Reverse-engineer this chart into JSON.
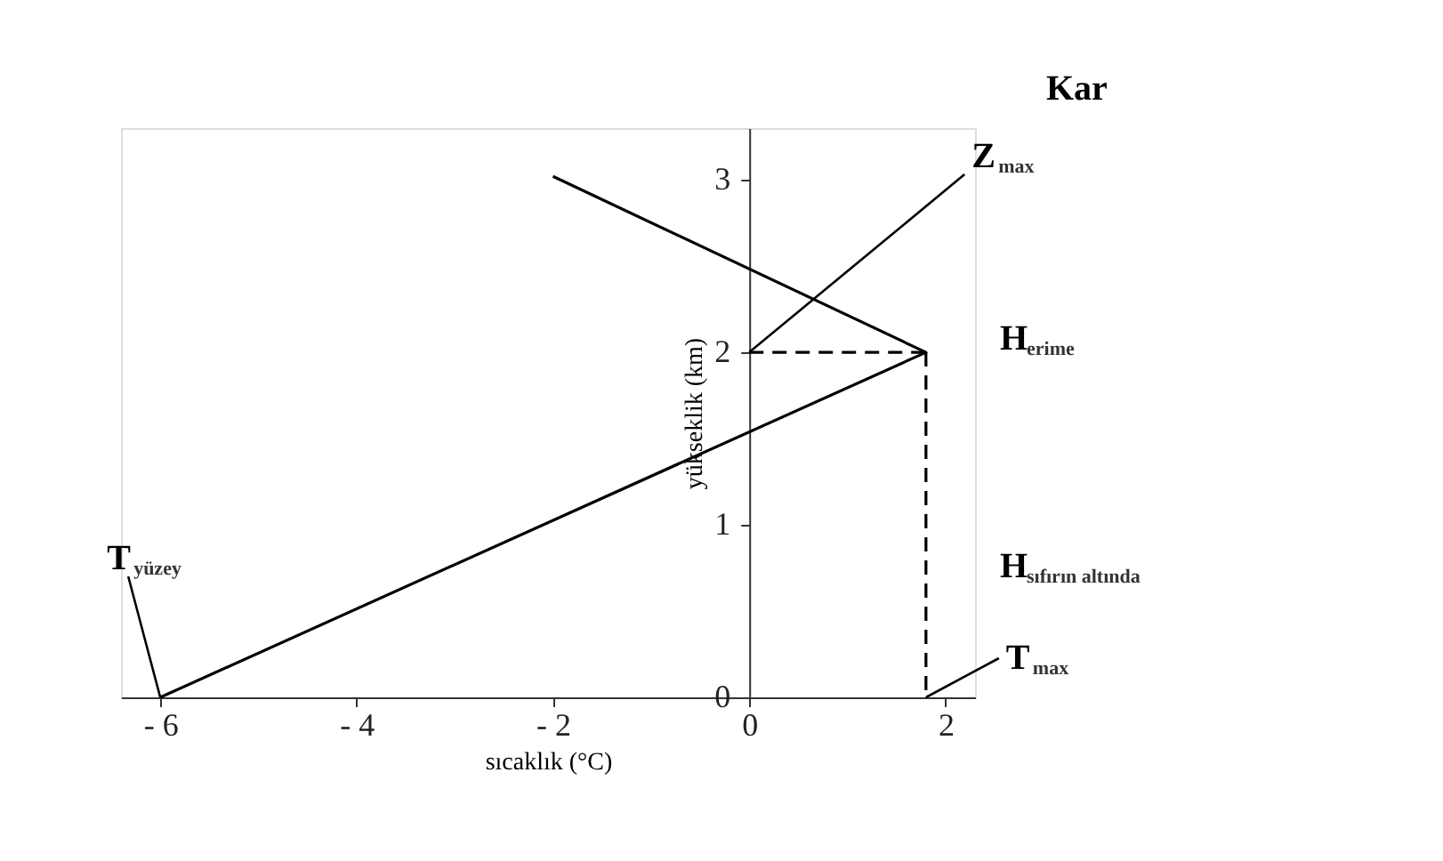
{
  "chart_data": {
    "type": "line",
    "xlabel": "sıcaklık (°C)",
    "ylabel": "yükseklik (km)",
    "xlim": [
      -6.4,
      2.3
    ],
    "xticks": [
      {
        "value": -6,
        "label": "- 6"
      },
      {
        "value": -4,
        "label": "- 4"
      },
      {
        "value": -2,
        "label": "- 2"
      },
      0,
      2
    ],
    "ylim": [
      0,
      3.3
    ],
    "yticks": [
      0,
      1,
      2,
      3
    ],
    "grid": false,
    "marker": "none",
    "series": [
      {
        "color": "#000000",
        "x": [
          -6,
          1.8,
          -2
        ],
        "values": [
          0,
          2,
          3.02
        ],
        "line_style": "solid"
      },
      {
        "color": "#000000",
        "x": [
          0,
          1.8
        ],
        "values": [
          2,
          2
        ],
        "line_style": "dashed"
      },
      {
        "color": "#000000",
        "x": [
          1.8,
          1.8
        ],
        "values": [
          2,
          0
        ],
        "line_style": "dashed"
      }
    ],
    "annotations": [
      "Kar",
      {
        "text": "Z$_{max}$",
        "x": 0,
        "y": 2
      },
      "H$_{erime}$",
      "H$_{sıfırın altında}$",
      {
        "text": "T$_{max}$",
        "x": 1.8,
        "y": 0
      },
      {
        "text": "T$_{yüzey}$",
        "x": -6,
        "y": 0
      }
    ]
  }
}
